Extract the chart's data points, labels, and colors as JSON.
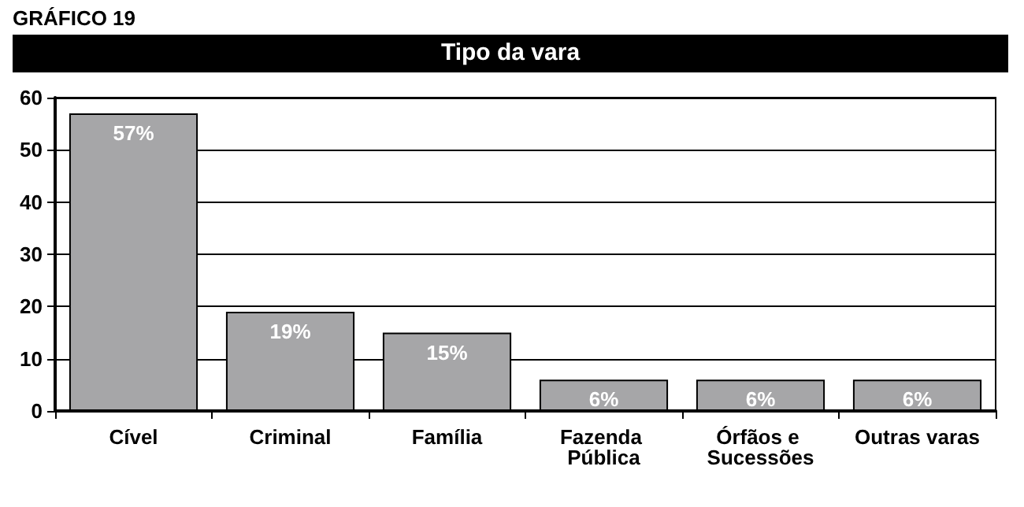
{
  "chart_data": {
    "type": "bar",
    "title": "Tipo da vara",
    "annotations": [
      "GRÁFICO 19"
    ],
    "categories": [
      "Cível",
      "Criminal",
      "Família",
      "Fazenda Pública",
      "Órfãos e Sucessões",
      "Outras varas"
    ],
    "values": [
      57,
      19,
      15,
      6,
      6,
      6
    ],
    "color": "#a6a6a8",
    "value_labels": [
      "57%",
      "19%",
      "15%",
      "6%",
      "6%",
      "6%"
    ],
    "ylim": [
      0,
      60
    ],
    "yticks": [
      0,
      10,
      20,
      30,
      40,
      50,
      60
    ],
    "grid": "y"
  }
}
